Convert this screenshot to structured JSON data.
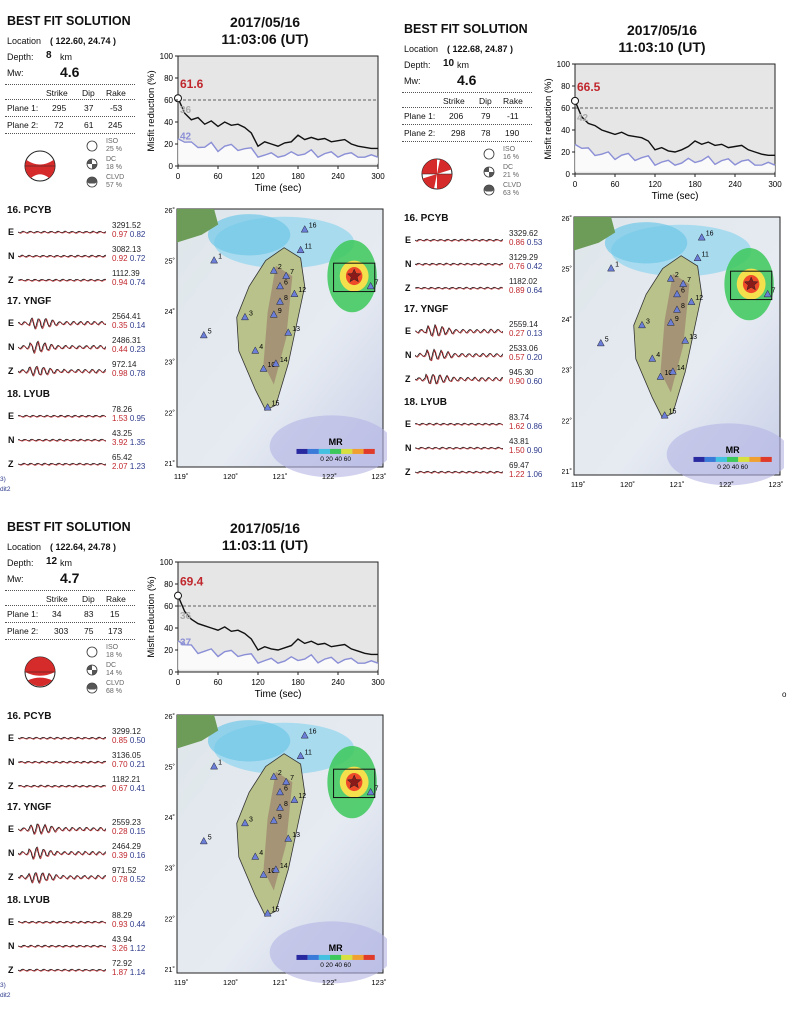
{
  "common": {
    "solution_title": "BEST FIT SOLUTION",
    "location_label": "Location",
    "depth_label": "Depth:",
    "depth_unit": "km",
    "mw_label": "Mw:",
    "col_strike": "Strike",
    "col_dip": "Dip",
    "col_rake": "Rake",
    "plane1_label": "Plane 1:",
    "plane2_label": "Plane 2:",
    "iso_label": "ISO",
    "dc_label": "DC",
    "clvd_label": "CLVD",
    "comp_e": "E",
    "comp_n": "N",
    "comp_z": "Z",
    "chart_ylabel": "Misfit reduction (%)",
    "chart_xlabel": "Time (sec)",
    "map_legend_label": "MR",
    "map_legend_ticks": "0 20 40 60",
    "frag_left": "3)",
    "frag_left2": "dit2",
    "frag_o": "o",
    "colors": {
      "red": "#c0272d",
      "blue": "#2d3a8c",
      "curve_black": "#111111",
      "curve_purple": "#8b8fd6",
      "bg_gray": "#e6e6e6"
    }
  },
  "panels": [
    {
      "date": "2017/05/16",
      "time": "11:03:06  (UT)",
      "location": "( 122.60,  24.74 )",
      "depth": "8",
      "mw": "4.6",
      "plane1": [
        "295",
        "37",
        "-53"
      ],
      "plane2": [
        "72",
        "61",
        "245"
      ],
      "iso_pct": "25 %",
      "dc_pct": "18 %",
      "clvd_pct": "57 %",
      "best_mr": "61.6",
      "left_val_a": "36",
      "left_val_b": "42",
      "stations": [
        {
          "name": "16. PCYB",
          "rows": [
            [
              "3291.52",
              "0.97",
              "0.82"
            ],
            [
              "3082.13",
              "0.92",
              "0.72"
            ],
            [
              "1112.39",
              "0.94",
              "0.74"
            ]
          ]
        },
        {
          "name": "17. YNGF",
          "rows": [
            [
              "2564.41",
              "0.35",
              "0.14"
            ],
            [
              "2486.31",
              "0.44",
              "0.23"
            ],
            [
              "972.14",
              "0.98",
              "0.78"
            ]
          ]
        },
        {
          "name": "18. LYUB",
          "rows": [
            [
              "78.26",
              "1.53",
              "0.95"
            ],
            [
              "43.25",
              "3.92",
              "1.35"
            ],
            [
              "65.42",
              "2.07",
              "1.23"
            ]
          ]
        }
      ]
    },
    {
      "date": "2017/05/16",
      "time": "11:03:10  (UT)",
      "location": "( 122.68,  24.87 )",
      "depth": "10",
      "mw": "4.6",
      "plane1": [
        "206",
        "79",
        "-11"
      ],
      "plane2": [
        "298",
        "78",
        "190"
      ],
      "iso_pct": "16 %",
      "dc_pct": "21 %",
      "clvd_pct": "63 %",
      "best_mr": "66.5",
      "left_val_a": "42",
      "left_val_b": "",
      "stations": [
        {
          "name": "16. PCYB",
          "rows": [
            [
              "3329.62",
              "0.86",
              "0.53"
            ],
            [
              "3129.29",
              "0.76",
              "0.42"
            ],
            [
              "1182.02",
              "0.89",
              "0.64"
            ]
          ]
        },
        {
          "name": "17. YNGF",
          "rows": [
            [
              "2559.14",
              "0.27",
              "0.13"
            ],
            [
              "2533.06",
              "0.57",
              "0.20"
            ],
            [
              "945.30",
              "0.90",
              "0.60"
            ]
          ]
        },
        {
          "name": "18. LYUB",
          "rows": [
            [
              "83.74",
              "1.62",
              "0.86"
            ],
            [
              "43.81",
              "1.50",
              "0.90"
            ],
            [
              "69.47",
              "1.22",
              "1.06"
            ]
          ]
        }
      ]
    },
    {
      "date": "2017/05/16",
      "time": "11:03:11  (UT)",
      "location": "( 122.64,  24.78 )",
      "depth": "12",
      "mw": "4.7",
      "plane1": [
        "34",
        "83",
        "15"
      ],
      "plane2": [
        "303",
        "75",
        "173"
      ],
      "iso_pct": "18 %",
      "dc_pct": "14 %",
      "clvd_pct": "68 %",
      "best_mr": "69.4",
      "left_val_a": "36",
      "left_val_b": "37",
      "stations": [
        {
          "name": "16. PCYB",
          "rows": [
            [
              "3299.12",
              "0.85",
              "0.50"
            ],
            [
              "3136.05",
              "0.70",
              "0.21"
            ],
            [
              "1182.21",
              "0.67",
              "0.41"
            ]
          ]
        },
        {
          "name": "17. YNGF",
          "rows": [
            [
              "2559.23",
              "0.28",
              "0.15"
            ],
            [
              "2464.29",
              "0.39",
              "0.16"
            ],
            [
              "971.52",
              "0.78",
              "0.52"
            ]
          ]
        },
        {
          "name": "18. LYUB",
          "rows": [
            [
              "88.29",
              "0.93",
              "0.44"
            ],
            [
              "43.94",
              "3.26",
              "1.12"
            ],
            [
              "72.92",
              "1.87",
              "1.14"
            ]
          ]
        }
      ]
    }
  ],
  "chart_data": [
    {
      "type": "line",
      "title": "",
      "xlabel": "Time (sec)",
      "ylabel": "Misfit reduction (%)",
      "xlim": [
        0,
        300
      ],
      "ylim": [
        0,
        100
      ],
      "xticks": [
        "0",
        "60",
        "120",
        "180",
        "240",
        "300"
      ],
      "yticks": [
        "0",
        "20",
        "40",
        "60",
        "80",
        "100"
      ],
      "series": [
        {
          "x": [
            0,
            10,
            20,
            30,
            40,
            50,
            60,
            70,
            80,
            90,
            100,
            110,
            120,
            130,
            140,
            150,
            160,
            170,
            180,
            190,
            200,
            210,
            220,
            230,
            240,
            250,
            260,
            270,
            280,
            290,
            300
          ],
          "y": [
            61.6,
            48,
            42,
            44,
            38,
            41,
            36,
            40,
            37,
            38,
            35,
            30,
            18,
            22,
            20,
            18,
            21,
            22,
            28,
            24,
            26,
            24,
            25,
            22,
            23,
            24,
            20,
            18,
            17,
            16,
            16
          ]
        }
      ],
      "reference_line": 60
    },
    {
      "type": "line",
      "title": "",
      "xlabel": "Time (sec)",
      "ylabel": "Misfit reduction (%)",
      "xlim": [
        0,
        300
      ],
      "ylim": [
        0,
        100
      ],
      "xticks": [
        "0",
        "60",
        "120",
        "180",
        "240",
        "300"
      ],
      "yticks": [
        "0",
        "20",
        "40",
        "60",
        "80",
        "100"
      ],
      "series": [
        {
          "x": [
            0,
            10,
            20,
            30,
            40,
            50,
            60,
            70,
            80,
            90,
            100,
            110,
            120,
            130,
            140,
            150,
            160,
            170,
            180,
            190,
            200,
            210,
            220,
            230,
            240,
            250,
            260,
            270,
            280,
            290,
            300
          ],
          "y": [
            66.5,
            52,
            46,
            44,
            40,
            38,
            36,
            38,
            35,
            34,
            33,
            30,
            22,
            24,
            21,
            20,
            22,
            25,
            30,
            27,
            29,
            26,
            27,
            24,
            25,
            26,
            22,
            20,
            18,
            17,
            17
          ]
        }
      ],
      "reference_line": 60
    },
    {
      "type": "line",
      "title": "",
      "xlabel": "Time (sec)",
      "ylabel": "Misfit reduction (%)",
      "xlim": [
        0,
        300
      ],
      "ylim": [
        0,
        100
      ],
      "xticks": [
        "0",
        "60",
        "120",
        "180",
        "240",
        "300"
      ],
      "yticks": [
        "0",
        "20",
        "40",
        "60",
        "80",
        "100"
      ],
      "series": [
        {
          "x": [
            0,
            10,
            20,
            30,
            40,
            50,
            60,
            70,
            80,
            90,
            100,
            110,
            120,
            130,
            140,
            150,
            160,
            170,
            180,
            190,
            200,
            210,
            220,
            230,
            240,
            250,
            260,
            270,
            280,
            290,
            300
          ],
          "y": [
            69.4,
            55,
            48,
            44,
            42,
            40,
            38,
            41,
            37,
            38,
            35,
            30,
            20,
            23,
            21,
            20,
            22,
            24,
            30,
            26,
            28,
            25,
            26,
            23,
            24,
            25,
            21,
            19,
            17,
            16,
            16
          ]
        }
      ],
      "reference_line": 60
    }
  ],
  "map": {
    "lon_ticks": [
      "119˚",
      "120˚",
      "121˚",
      "122˚",
      "123˚"
    ],
    "lat_ticks": [
      "26˚",
      "25˚",
      "24˚",
      "23˚",
      "22˚",
      "21˚"
    ],
    "station_labels": [
      "1",
      "2",
      "3",
      "4",
      "5",
      "6",
      "7",
      "8",
      "9",
      "10",
      "11",
      "12",
      "13",
      "14",
      "15",
      "16",
      "7"
    ]
  }
}
